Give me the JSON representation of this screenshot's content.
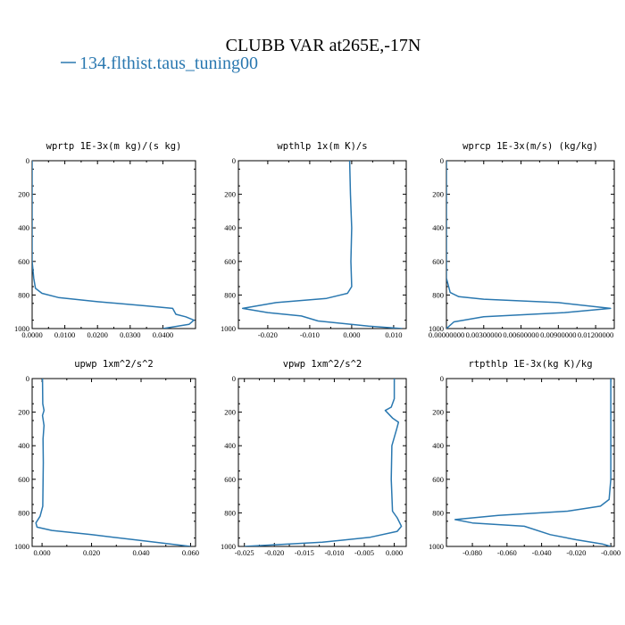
{
  "figure": {
    "title": "CLUBB VAR at265E,-17N",
    "legend": {
      "label": "134.flthist.taus_tuning00",
      "color": "#2a78b0"
    }
  },
  "chart_data": [
    {
      "type": "line",
      "title": "wprtp  1E-3x(m kg)/(s kg)",
      "xlim": [
        0,
        0.05
      ],
      "ylim": [
        1000,
        0
      ],
      "xticks": [
        0,
        0.01,
        0.02,
        0.03,
        0.04
      ],
      "xtick_labels": [
        "0.0000",
        "0.0100",
        "0.0200",
        "0.0300",
        "0.0400"
      ],
      "yticks": [
        0,
        200,
        400,
        600,
        800,
        1000
      ],
      "ytick_labels": [
        "0",
        "200",
        "400",
        "600",
        "800",
        "1000"
      ],
      "series": [
        {
          "color": "#2a78b0",
          "x": [
            0.0,
            0.0,
            0.0,
            0.0,
            0.0005,
            0.001,
            0.003,
            0.008,
            0.02,
            0.035,
            0.043,
            0.044,
            0.047,
            0.0495,
            0.048,
            0.04
          ],
          "y": [
            0,
            200,
            400,
            600,
            700,
            760,
            790,
            815,
            840,
            865,
            880,
            915,
            930,
            950,
            975,
            1000
          ]
        }
      ]
    },
    {
      "type": "line",
      "title": "wpthlp  1x(m K)/s",
      "xlim": [
        -0.027,
        0.013
      ],
      "ylim": [
        1000,
        0
      ],
      "xticks": [
        -0.02,
        -0.01,
        0,
        0.01
      ],
      "xtick_labels": [
        "-0.020",
        "-0.010",
        "0.000",
        "0.010"
      ],
      "yticks": [
        0,
        200,
        400,
        600,
        800,
        1000
      ],
      "ytick_labels": [
        "0",
        "200",
        "400",
        "600",
        "800",
        "1000"
      ],
      "series": [
        {
          "color": "#2a78b0",
          "x": [
            -0.0005,
            -0.0003,
            0.0,
            -0.0002,
            0.0,
            -0.001,
            -0.006,
            -0.018,
            -0.026,
            -0.02,
            -0.012,
            -0.008,
            0.004,
            0.012
          ],
          "y": [
            0,
            200,
            400,
            600,
            750,
            790,
            820,
            845,
            880,
            905,
            925,
            955,
            985,
            1000
          ]
        }
      ]
    },
    {
      "type": "line",
      "title": "wprcp  1E-3x(m/s) (kg/kg)",
      "xlim": [
        0,
        0.0135
      ],
      "ylim": [
        1000,
        0
      ],
      "xticks": [
        0,
        0.003,
        0.006,
        0.009,
        0.012
      ],
      "xtick_labels": [
        "0.00000000",
        "0.00300000",
        "0.00600000",
        "0.00900000",
        "0.01200000"
      ],
      "yticks": [
        0,
        200,
        400,
        600,
        800,
        1000
      ],
      "ytick_labels": [
        "0",
        "200",
        "400",
        "600",
        "800",
        "1000"
      ],
      "series": [
        {
          "color": "#2a78b0",
          "x": [
            0.0,
            0.0,
            0.0,
            0.0,
            0.0003,
            0.001,
            0.003,
            0.009,
            0.0132,
            0.0095,
            0.003,
            0.0006,
            0.0
          ],
          "y": [
            0,
            200,
            400,
            700,
            785,
            810,
            825,
            845,
            880,
            905,
            930,
            960,
            1000
          ]
        }
      ]
    },
    {
      "type": "line",
      "title": "upwp  1xm^2/s^2",
      "xlim": [
        -0.004,
        0.062
      ],
      "ylim": [
        1000,
        0
      ],
      "xticks": [
        0,
        0.02,
        0.04,
        0.06
      ],
      "xtick_labels": [
        "0.000",
        "0.020",
        "0.040",
        "0.060"
      ],
      "yticks": [
        0,
        200,
        400,
        600,
        800,
        1000
      ],
      "ytick_labels": [
        "0",
        "200",
        "400",
        "600",
        "800",
        "1000"
      ],
      "series": [
        {
          "color": "#2a78b0",
          "x": [
            0.0002,
            0.0003,
            0.0008,
            0.0002,
            0.0008,
            0.0004,
            0.0005,
            0.0003,
            -0.0008,
            -0.0025,
            -0.002,
            0.004,
            0.02,
            0.04,
            0.06
          ],
          "y": [
            0,
            150,
            190,
            220,
            280,
            360,
            500,
            760,
            820,
            860,
            885,
            905,
            930,
            965,
            1000
          ]
        }
      ]
    },
    {
      "type": "line",
      "title": "vpwp  1xm^2/s^2",
      "xlim": [
        -0.026,
        0.002
      ],
      "ylim": [
        1000,
        0
      ],
      "xticks": [
        -0.025,
        -0.02,
        -0.015,
        -0.01,
        -0.005,
        0
      ],
      "xtick_labels": [
        "-0.025",
        "-0.020",
        "-0.015",
        "-0.010",
        "-0.005",
        "0.000"
      ],
      "yticks": [
        0,
        200,
        400,
        600,
        800,
        1000
      ],
      "ytick_labels": [
        "0",
        "200",
        "400",
        "600",
        "800",
        "1000"
      ],
      "series": [
        {
          "color": "#2a78b0",
          "x": [
            0.0,
            0.0,
            -0.0005,
            -0.0015,
            -0.0003,
            0.0007,
            0.0004,
            -0.0004,
            -0.0005,
            -0.0003,
            0.0005,
            0.0012,
            0.0005,
            -0.004,
            -0.012,
            -0.025
          ],
          "y": [
            0,
            120,
            170,
            190,
            235,
            260,
            300,
            400,
            600,
            790,
            830,
            880,
            910,
            945,
            975,
            1000
          ]
        }
      ]
    },
    {
      "type": "line",
      "title": "rtpthlp  1E-3x(kg K)/kg",
      "xlim": [
        -0.095,
        0.002
      ],
      "ylim": [
        1000,
        0
      ],
      "xticks": [
        -0.08,
        -0.06,
        -0.04,
        -0.02,
        0
      ],
      "xtick_labels": [
        "-0.080",
        "-0.060",
        "-0.040",
        "-0.020",
        "-0.000"
      ],
      "yticks": [
        0,
        200,
        400,
        600,
        800,
        1000
      ],
      "ytick_labels": [
        "0",
        "200",
        "400",
        "600",
        "800",
        "1000"
      ],
      "series": [
        {
          "color": "#2a78b0",
          "x": [
            0.0,
            0.0,
            0.0,
            -0.001,
            -0.006,
            -0.025,
            -0.065,
            -0.09,
            -0.08,
            -0.05,
            -0.035,
            -0.02,
            -0.005,
            0.0
          ],
          "y": [
            0,
            300,
            600,
            720,
            760,
            790,
            815,
            840,
            860,
            880,
            930,
            960,
            985,
            1000
          ]
        }
      ]
    }
  ]
}
